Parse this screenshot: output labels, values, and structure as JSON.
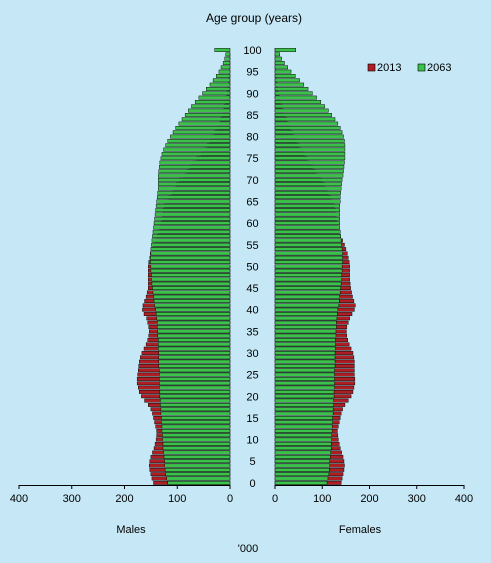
{
  "chart_data": {
    "type": "bar",
    "title": "Age group (years)",
    "xlabel": "'000",
    "left_panel_label": "Males",
    "right_panel_label": "Females",
    "x_ticks_left": [
      400,
      300,
      200,
      100,
      0
    ],
    "x_ticks_right": [
      0,
      100,
      200,
      300,
      400
    ],
    "xlim": [
      0,
      400
    ],
    "y_ticks": [
      0,
      5,
      10,
      15,
      20,
      25,
      30,
      35,
      40,
      45,
      50,
      55,
      60,
      65,
      70,
      75,
      80,
      85,
      90,
      95,
      100
    ],
    "ages": [
      0,
      1,
      2,
      3,
      4,
      5,
      6,
      7,
      8,
      9,
      10,
      11,
      12,
      13,
      14,
      15,
      16,
      17,
      18,
      19,
      20,
      21,
      22,
      23,
      24,
      25,
      26,
      27,
      28,
      29,
      30,
      31,
      32,
      33,
      34,
      35,
      36,
      37,
      38,
      39,
      40,
      41,
      42,
      43,
      44,
      45,
      46,
      47,
      48,
      49,
      50,
      51,
      52,
      53,
      54,
      55,
      56,
      57,
      58,
      59,
      60,
      61,
      62,
      63,
      64,
      65,
      66,
      67,
      68,
      69,
      70,
      71,
      72,
      73,
      74,
      75,
      76,
      77,
      78,
      79,
      80,
      81,
      82,
      83,
      84,
      85,
      86,
      87,
      88,
      89,
      90,
      91,
      92,
      93,
      94,
      95,
      96,
      97,
      98,
      99,
      100
    ],
    "legend": "top-right",
    "series": [
      {
        "name": "2013",
        "color": "#b01e23",
        "males": [
          145,
          148,
          150,
          152,
          153,
          152,
          150,
          147,
          144,
          142,
          140,
          139,
          139,
          141,
          143,
          145,
          147,
          150,
          155,
          162,
          168,
          172,
          174,
          176,
          176,
          175,
          174,
          173,
          172,
          170,
          167,
          163,
          159,
          156,
          154,
          153,
          154,
          156,
          158,
          163,
          166,
          165,
          162,
          159,
          157,
          155,
          155,
          155,
          155,
          155,
          155,
          154,
          152,
          151,
          149,
          146,
          142,
          138,
          135,
          133,
          131,
          129,
          128,
          127,
          125,
          122,
          116,
          110,
          106,
          102,
          96,
          88,
          82,
          76,
          70,
          63,
          55,
          49,
          43,
          38,
          34,
          29,
          25,
          21,
          18,
          16,
          13,
          11,
          9,
          7,
          6,
          5,
          4,
          3,
          2,
          2,
          1,
          1,
          1,
          1,
          0
        ],
        "females": [
          140,
          142,
          144,
          146,
          147,
          146,
          144,
          141,
          138,
          136,
          134,
          133,
          132,
          134,
          136,
          138,
          140,
          143,
          148,
          155,
          161,
          165,
          167,
          169,
          169,
          168,
          168,
          168,
          168,
          167,
          165,
          161,
          157,
          154,
          152,
          151,
          152,
          155,
          158,
          163,
          168,
          170,
          167,
          164,
          162,
          160,
          159,
          158,
          158,
          158,
          158,
          157,
          155,
          153,
          150,
          147,
          143,
          139,
          136,
          134,
          132,
          130,
          129,
          128,
          126,
          124,
          118,
          113,
          109,
          105,
          99,
          92,
          86,
          80,
          74,
          68,
          62,
          56,
          51,
          46,
          42,
          37,
          33,
          28,
          25,
          22,
          18,
          15,
          12,
          10,
          8,
          6,
          5,
          4,
          3,
          2,
          2,
          1,
          1,
          1,
          1
        ]
      },
      {
        "name": "2063",
        "color": "#3cc24a",
        "males": [
          118,
          120,
          122,
          123,
          124,
          124,
          125,
          126,
          127,
          127,
          128,
          128,
          129,
          129,
          130,
          130,
          131,
          131,
          132,
          132,
          133,
          133,
          134,
          134,
          134,
          134,
          134,
          135,
          135,
          135,
          135,
          136,
          136,
          136,
          137,
          137,
          138,
          138,
          139,
          140,
          141,
          143,
          144,
          145,
          146,
          147,
          148,
          149,
          149,
          150,
          150,
          151,
          151,
          150,
          150,
          149,
          148,
          147,
          146,
          145,
          144,
          143,
          142,
          141,
          140,
          139,
          138,
          137,
          136,
          136,
          136,
          136,
          135,
          134,
          133,
          131,
          129,
          126,
          122,
          118,
          113,
          108,
          103,
          97,
          91,
          85,
          79,
          73,
          66,
          59,
          52,
          45,
          38,
          32,
          26,
          21,
          17,
          13,
          10,
          8,
          29
        ],
        "females": [
          110,
          112,
          114,
          115,
          116,
          116,
          117,
          118,
          119,
          119,
          120,
          120,
          121,
          121,
          122,
          122,
          123,
          123,
          124,
          124,
          125,
          125,
          126,
          126,
          126,
          126,
          126,
          127,
          127,
          127,
          127,
          128,
          128,
          128,
          129,
          129,
          130,
          130,
          131,
          132,
          133,
          135,
          136,
          137,
          138,
          139,
          140,
          141,
          141,
          142,
          142,
          143,
          143,
          143,
          142,
          141,
          140,
          139,
          138,
          137,
          137,
          137,
          137,
          137,
          137,
          138,
          138,
          139,
          140,
          141,
          142,
          144,
          145,
          146,
          147,
          148,
          148,
          148,
          148,
          147,
          145,
          142,
          138,
          133,
          127,
          120,
          113,
          105,
          97,
          88,
          79,
          70,
          61,
          52,
          43,
          34,
          27,
          20,
          14,
          10,
          44
        ]
      }
    ]
  }
}
